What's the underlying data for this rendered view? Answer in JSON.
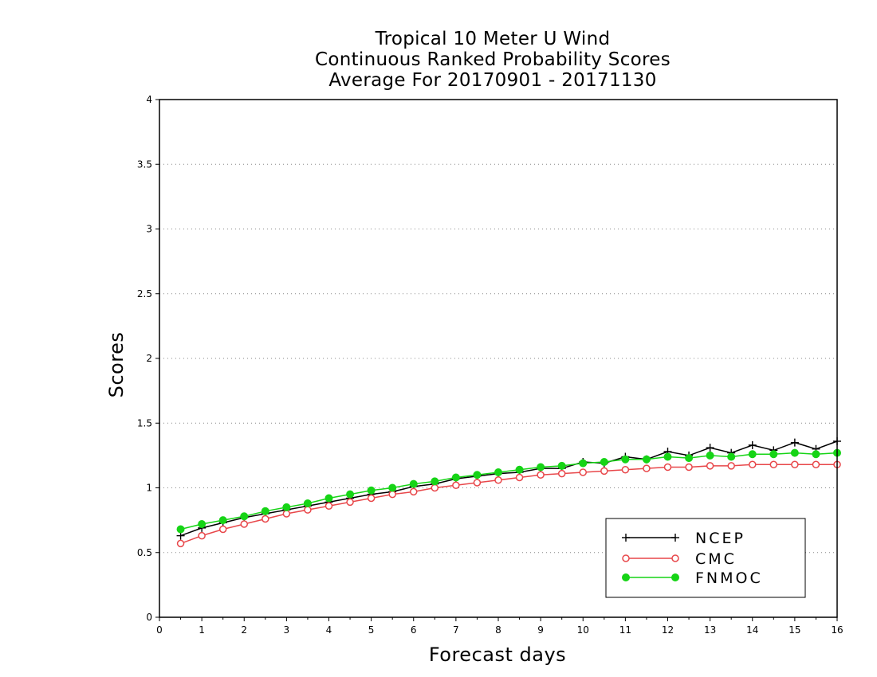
{
  "chart_data": {
    "type": "line",
    "title_lines": [
      "Tropical 10 Meter U Wind",
      "Continuous Ranked Probability Scores",
      "Average For 20170901 - 20171130"
    ],
    "xlabel": "Forecast days",
    "ylabel": "Scores",
    "xlim": [
      0,
      16
    ],
    "ylim": [
      0,
      4
    ],
    "xticks": [
      0,
      1,
      2,
      3,
      4,
      5,
      6,
      7,
      8,
      9,
      10,
      11,
      12,
      13,
      14,
      15,
      16
    ],
    "yticks": [
      0,
      0.5,
      1,
      1.5,
      2,
      2.5,
      3,
      3.5,
      4
    ],
    "ytick_labels": [
      "0",
      "0.5",
      "1",
      "1.5",
      "2",
      "2.5",
      "3",
      "3.5",
      "4"
    ],
    "grid": "horizontal dotted",
    "legend_position": "bottom-right",
    "x": [
      0.5,
      1,
      1.5,
      2,
      2.5,
      3,
      3.5,
      4,
      4.5,
      5,
      5.5,
      6,
      6.5,
      7,
      7.5,
      8,
      8.5,
      9,
      9.5,
      10,
      10.5,
      11,
      11.5,
      12,
      12.5,
      13,
      13.5,
      14,
      14.5,
      15,
      15.5,
      16
    ],
    "series": [
      {
        "name": "NCEP",
        "color": "#000000",
        "marker": "plus",
        "values": [
          0.63,
          0.69,
          0.73,
          0.77,
          0.8,
          0.83,
          0.86,
          0.89,
          0.92,
          0.95,
          0.97,
          1.01,
          1.03,
          1.07,
          1.09,
          1.11,
          1.12,
          1.15,
          1.15,
          1.2,
          1.19,
          1.24,
          1.22,
          1.28,
          1.25,
          1.31,
          1.27,
          1.33,
          1.29,
          1.35,
          1.3,
          1.36
        ]
      },
      {
        "name": "CMC",
        "color": "#e8474a",
        "marker": "open-circle",
        "values": [
          0.57,
          0.63,
          0.68,
          0.72,
          0.76,
          0.8,
          0.83,
          0.86,
          0.89,
          0.92,
          0.95,
          0.97,
          1.0,
          1.02,
          1.04,
          1.06,
          1.08,
          1.1,
          1.11,
          1.12,
          1.13,
          1.14,
          1.15,
          1.16,
          1.16,
          1.17,
          1.17,
          1.18,
          1.18,
          1.18,
          1.18,
          1.18
        ]
      },
      {
        "name": "FNMOC",
        "color": "#16d416",
        "marker": "filled-circle",
        "values": [
          0.68,
          0.72,
          0.75,
          0.78,
          0.82,
          0.85,
          0.88,
          0.92,
          0.95,
          0.98,
          1.0,
          1.03,
          1.05,
          1.08,
          1.1,
          1.12,
          1.14,
          1.16,
          1.17,
          1.19,
          1.2,
          1.22,
          1.22,
          1.24,
          1.23,
          1.25,
          1.24,
          1.26,
          1.26,
          1.27,
          1.26,
          1.27
        ]
      }
    ]
  }
}
